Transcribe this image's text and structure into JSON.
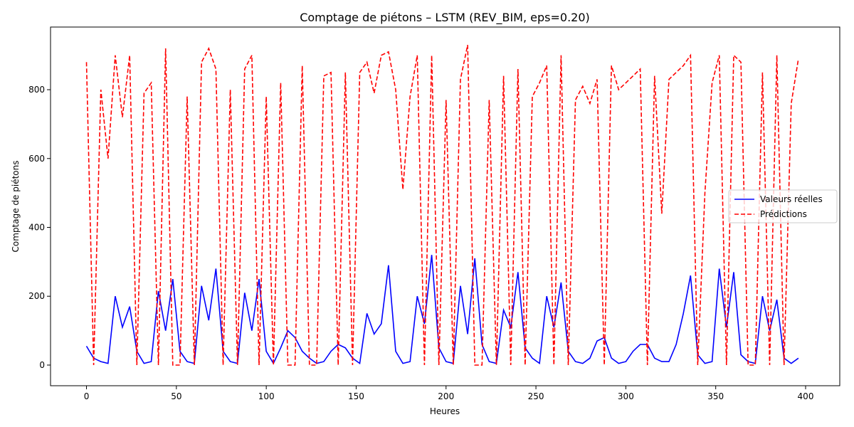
{
  "chart_data": {
    "type": "line",
    "title": "Comptage de piétons – LSTM (REV_BIM, eps=0.20)",
    "xlabel": "Heures",
    "ylabel": "Comptage de piétons",
    "x": [
      0,
      4,
      8,
      12,
      16,
      20,
      24,
      28,
      32,
      36,
      40,
      44,
      48,
      52,
      56,
      60,
      64,
      68,
      72,
      76,
      80,
      84,
      88,
      92,
      96,
      100,
      104,
      108,
      112,
      116,
      120,
      124,
      128,
      132,
      136,
      140,
      144,
      148,
      152,
      156,
      160,
      164,
      168,
      172,
      176,
      180,
      184,
      188,
      192,
      196,
      200,
      204,
      208,
      212,
      216,
      220,
      224,
      228,
      232,
      236,
      240,
      244,
      248,
      252,
      256,
      260,
      264,
      268,
      272,
      276,
      280,
      284,
      288,
      292,
      296,
      300,
      304,
      308,
      312,
      316,
      320,
      324,
      328,
      332,
      336,
      340,
      344,
      348,
      352,
      356,
      360,
      364,
      368,
      372,
      376,
      380,
      384,
      388,
      392,
      396
    ],
    "series": [
      {
        "name": "Valeurs réelles",
        "color": "#0000ff",
        "dash": false,
        "values": [
          55,
          20,
          10,
          5,
          200,
          110,
          170,
          40,
          5,
          10,
          215,
          100,
          250,
          40,
          10,
          5,
          230,
          130,
          280,
          40,
          10,
          5,
          210,
          100,
          250,
          40,
          5,
          50,
          100,
          80,
          40,
          20,
          5,
          10,
          40,
          60,
          50,
          20,
          5,
          150,
          90,
          120,
          290,
          40,
          5,
          10,
          200,
          120,
          320,
          50,
          10,
          5,
          230,
          90,
          310,
          60,
          10,
          5,
          160,
          110,
          270,
          50,
          20,
          5,
          200,
          110,
          240,
          40,
          10,
          5,
          20,
          70,
          80,
          20,
          5,
          10,
          40,
          60,
          60,
          20,
          10,
          10,
          60,
          150,
          260,
          30,
          5,
          10,
          280,
          110,
          270,
          30,
          10,
          5,
          200,
          100,
          190,
          20,
          5,
          20
        ]
      },
      {
        "name": "Prédictions",
        "color": "#ff0000",
        "dash": true,
        "values": [
          880,
          0,
          800,
          600,
          900,
          720,
          900,
          0,
          790,
          820,
          0,
          920,
          0,
          0,
          780,
          0,
          880,
          920,
          860,
          0,
          800,
          0,
          860,
          900,
          0,
          780,
          0,
          820,
          0,
          0,
          870,
          0,
          0,
          840,
          850,
          0,
          850,
          0,
          850,
          880,
          790,
          900,
          910,
          800,
          510,
          780,
          900,
          0,
          900,
          0,
          770,
          0,
          830,
          930,
          0,
          0,
          770,
          0,
          840,
          0,
          860,
          0,
          780,
          820,
          870,
          0,
          900,
          0,
          770,
          810,
          760,
          830,
          0,
          870,
          800,
          820,
          840,
          860,
          0,
          840,
          440,
          830,
          850,
          870,
          900,
          0,
          500,
          820,
          900,
          0,
          900,
          880,
          0,
          0,
          850,
          0,
          900,
          0,
          760,
          890
        ]
      }
    ],
    "xlim": [
      -20,
      419
    ],
    "ylim": [
      -60,
      982
    ],
    "xticks": [
      0,
      50,
      100,
      150,
      200,
      250,
      300,
      350,
      400
    ],
    "yticks": [
      0,
      200,
      400,
      600,
      800
    ],
    "legend": "center right"
  }
}
